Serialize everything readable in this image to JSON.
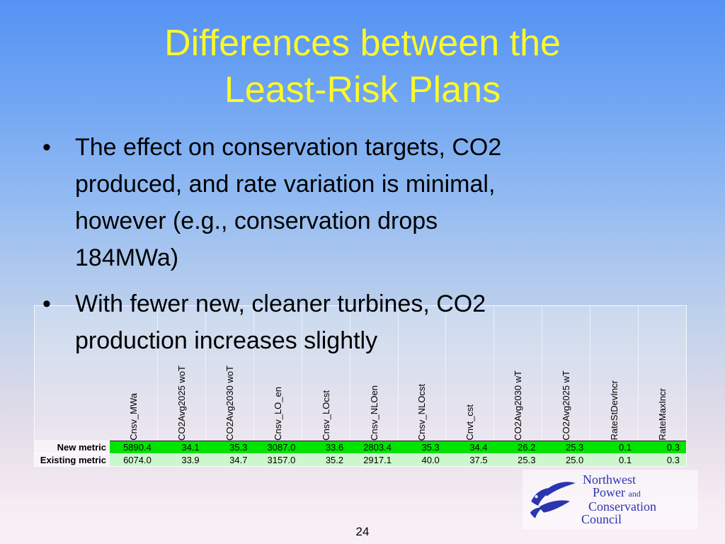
{
  "slide": {
    "title": "Differences between the\nLeast-Risk Plans",
    "page_number": "24"
  },
  "bullets": [
    {
      "text": "The effect on conservation targets, CO2\nproduced, and rate variation is minimal,\nhowever (e.g., conservation drops\n184MWa)"
    },
    {
      "text": "With fewer new, cleaner turbines, CO2\nproduction increases slightly"
    }
  ],
  "table": {
    "columns": [
      "Cnsv_MWa",
      "CO2Avg2025 woT",
      "CO2Avg2030 woT",
      "Cnsv_LO_en",
      "Cnsv_LOcst",
      "Cnsv_NLOen",
      "Cnsv_NLOcst",
      "Cnvt_cst",
      "CO2Avg2030 wT",
      "CO2Avg2025 wT",
      "RateStDevIncr",
      "RateMaxIncr"
    ],
    "rows": [
      {
        "label": "New metric",
        "values": [
          "5890.4",
          "34.1",
          "35.3",
          "3087.0",
          "33.6",
          "2803.4",
          "35.3",
          "34.4",
          "26.2",
          "25.3",
          "0.1",
          "0.3"
        ]
      },
      {
        "label": "Existing metric",
        "values": [
          "6074.0",
          "33.9",
          "34.7",
          "3157.0",
          "35.2",
          "2917.1",
          "40.0",
          "37.5",
          "25.3",
          "25.0",
          "0.1",
          "0.3"
        ]
      }
    ]
  },
  "logo": {
    "lines": [
      "Northwest",
      "Power",
      "and",
      "Conservation",
      "Council"
    ],
    "icon": "fish-waves-icon"
  },
  "colors": {
    "title_yellow": "#FCF929",
    "row_new_green": "#00E400",
    "row_existing_green": "#CCF6CC",
    "logo_blue": "#2B35AE"
  }
}
